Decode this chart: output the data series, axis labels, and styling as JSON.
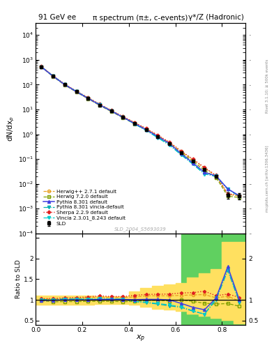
{
  "title_left": "91 GeV ee",
  "title_right": "γ*/Z (Hadronic)",
  "plot_title": "π spectrum (π±, c-events)",
  "watermark": "SLD_2004_S5693039",
  "rivet_label": "Rivet 3.1.10; ≥ 500k events",
  "arxiv_label": "mcplots.cern.ch [arXiv:1306.3436]",
  "xlabel": "$x_p$",
  "ylabel_main": "dN/dx$_p$",
  "ylabel_ratio": "Ratio to SLD",
  "xlim": [
    0.0,
    0.9
  ],
  "ylim_main_log": [
    0.0001,
    30000.0
  ],
  "ylim_ratio": [
    0.4,
    2.6
  ],
  "xp_sld": [
    0.025,
    0.075,
    0.125,
    0.175,
    0.225,
    0.275,
    0.325,
    0.375,
    0.425,
    0.475,
    0.525,
    0.575,
    0.625,
    0.675,
    0.725,
    0.775,
    0.825,
    0.875
  ],
  "y_sld": [
    520,
    220,
    100,
    52,
    28,
    15,
    8.5,
    4.8,
    2.7,
    1.5,
    0.8,
    0.42,
    0.18,
    0.085,
    0.038,
    0.02,
    0.0035,
    0.0033
  ],
  "yerr_sld": [
    20,
    8,
    4,
    2,
    1.1,
    0.6,
    0.35,
    0.2,
    0.11,
    0.07,
    0.035,
    0.02,
    0.01,
    0.006,
    0.004,
    0.003,
    0.001,
    0.001
  ],
  "xp_mc": [
    0.025,
    0.075,
    0.125,
    0.175,
    0.225,
    0.275,
    0.325,
    0.375,
    0.425,
    0.475,
    0.525,
    0.575,
    0.625,
    0.675,
    0.725,
    0.775,
    0.825,
    0.875
  ],
  "y_herwig271": [
    530,
    225,
    103,
    54,
    29.5,
    16,
    9.0,
    5.1,
    2.9,
    1.65,
    0.88,
    0.46,
    0.2,
    0.095,
    0.043,
    0.021,
    0.0038,
    0.0032
  ],
  "y_herwig720": [
    510,
    210,
    96,
    50,
    27,
    14.5,
    8.2,
    4.6,
    2.6,
    1.48,
    0.79,
    0.41,
    0.18,
    0.082,
    0.035,
    0.018,
    0.0032,
    0.0028
  ],
  "y_pythia8301": [
    515,
    218,
    100,
    52,
    28,
    15.2,
    8.6,
    4.85,
    2.72,
    1.52,
    0.81,
    0.42,
    0.165,
    0.07,
    0.029,
    0.021,
    0.0063,
    0.0033
  ],
  "y_pythia_vincia": [
    525,
    222,
    102,
    53,
    28.5,
    15.5,
    8.7,
    4.9,
    2.6,
    1.4,
    0.72,
    0.36,
    0.148,
    0.062,
    0.025,
    0.02,
    0.006,
    0.0031
  ],
  "y_sherpa": [
    535,
    228,
    105,
    55,
    30,
    16.5,
    9.2,
    5.2,
    3.0,
    1.7,
    0.91,
    0.48,
    0.21,
    0.1,
    0.046,
    0.022,
    0.004,
    0.0035
  ],
  "y_vincia": [
    525,
    222,
    102,
    53,
    28.5,
    15.5,
    8.7,
    4.9,
    2.6,
    1.42,
    0.73,
    0.37,
    0.15,
    0.063,
    0.025,
    0.021,
    0.0061,
    0.0032
  ],
  "ratio_herwig271": [
    1.02,
    1.02,
    1.03,
    1.04,
    1.05,
    1.07,
    1.06,
    1.06,
    1.07,
    1.1,
    1.1,
    1.1,
    1.11,
    1.12,
    1.13,
    1.05,
    1.09,
    0.97
  ],
  "ratio_herwig720": [
    0.98,
    0.955,
    0.96,
    0.96,
    0.964,
    0.967,
    0.965,
    0.958,
    0.963,
    0.987,
    0.988,
    0.976,
    1.0,
    0.965,
    0.921,
    0.9,
    0.914,
    0.848
  ],
  "ratio_pythia8301": [
    0.99,
    0.991,
    1.0,
    1.0,
    1.0,
    1.013,
    1.012,
    1.01,
    1.007,
    1.013,
    1.013,
    1.0,
    0.917,
    0.824,
    0.763,
    1.05,
    1.8,
    1.0
  ],
  "ratio_pythia_vincia": [
    1.01,
    1.009,
    1.02,
    1.02,
    1.018,
    1.033,
    1.024,
    1.021,
    0.963,
    0.933,
    0.9,
    0.857,
    0.822,
    0.729,
    0.658,
    1.0,
    1.71,
    0.939
  ],
  "ratio_sherpa": [
    1.03,
    1.036,
    1.05,
    1.058,
    1.071,
    1.1,
    1.082,
    1.083,
    1.111,
    1.133,
    1.138,
    1.143,
    1.167,
    1.176,
    1.211,
    1.1,
    1.143,
    1.061
  ],
  "ratio_vincia": [
    1.01,
    1.009,
    1.02,
    1.02,
    1.018,
    1.033,
    1.024,
    1.021,
    0.963,
    0.947,
    0.913,
    0.881,
    0.833,
    0.741,
    0.658,
    1.05,
    1.74,
    0.97
  ],
  "band_yellow_x": [
    0.0,
    0.05,
    0.1,
    0.15,
    0.2,
    0.25,
    0.3,
    0.35,
    0.4,
    0.45,
    0.5,
    0.55,
    0.6,
    0.65,
    0.7,
    0.75,
    0.8,
    0.85,
    0.9
  ],
  "band_yellow_lo": [
    0.89,
    0.89,
    0.89,
    0.89,
    0.89,
    0.91,
    0.91,
    0.91,
    0.89,
    0.83,
    0.79,
    0.76,
    0.73,
    0.66,
    0.61,
    0.56,
    0.51,
    0.43,
    0.43
  ],
  "band_yellow_hi": [
    1.11,
    1.11,
    1.11,
    1.11,
    1.11,
    1.09,
    1.09,
    1.09,
    1.21,
    1.29,
    1.34,
    1.37,
    1.41,
    1.54,
    1.64,
    1.74,
    2.4,
    2.4,
    2.4
  ],
  "band_green_x": [
    0.625,
    0.675,
    0.725,
    0.775,
    0.825,
    0.875,
    0.9
  ],
  "band_green_lo": [
    0.42,
    0.42,
    0.42,
    0.42,
    0.42,
    0.42,
    0.42
  ],
  "band_green_hi": [
    2.58,
    2.58,
    2.58,
    2.58,
    2.58,
    2.58,
    2.58
  ],
  "color_herwig271": "#e8a020",
  "color_herwig720": "#80a000",
  "color_pythia8301": "#4040e0",
  "color_pythia_vincia": "#00b0b0",
  "color_sherpa": "#e02020",
  "color_vincia": "#00cccc",
  "sld_color": "#000000",
  "yellow_color": "#ffe060",
  "green_color": "#60d060"
}
